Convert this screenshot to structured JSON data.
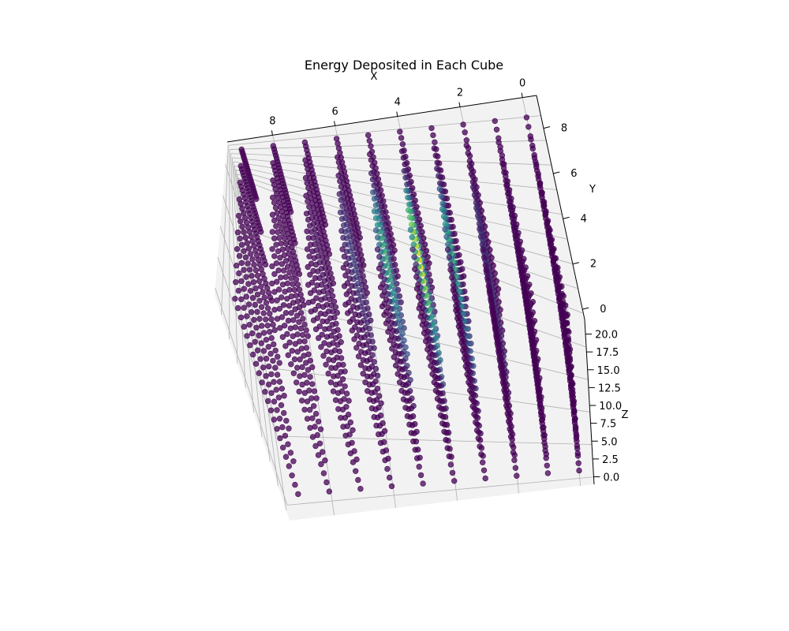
{
  "chart_data": {
    "type": "scatter3d",
    "title": "Energy Deposited in Each Cube",
    "xlabel": "X",
    "ylabel": "Y",
    "zlabel": "Z",
    "xlim": [
      -0.45,
      9.45
    ],
    "ylim": [
      -0.45,
      9.45
    ],
    "zlim": [
      -1.05,
      22.05
    ],
    "x_ticks": [
      0,
      2,
      4,
      6,
      8
    ],
    "x_tick_labels": [
      "0",
      "2",
      "4",
      "6",
      "8"
    ],
    "y_ticks": [
      0,
      2,
      4,
      6,
      8
    ],
    "y_tick_labels": [
      "0",
      "2",
      "4",
      "6",
      "8"
    ],
    "z_ticks": [
      0,
      2.5,
      5,
      7.5,
      10,
      12.5,
      15,
      17.5,
      20
    ],
    "z_tick_labels": [
      "0.0",
      "2.5",
      "5.0",
      "7.5",
      "10.0",
      "12.5",
      "15.0",
      "17.5",
      "20.0"
    ],
    "grid": true,
    "colormap": "viridis",
    "colormap_stops": [
      "#440154",
      "#3b528b",
      "#21918c",
      "#5ec962",
      "#fde725"
    ],
    "point_alpha": 0.75,
    "points": {
      "x_values": [
        0,
        1,
        2,
        3,
        4,
        5,
        6,
        7,
        8,
        9
      ],
      "y_values": [
        0,
        1,
        2,
        3,
        4,
        5,
        6,
        7,
        8,
        9
      ],
      "z_values": [
        0,
        1,
        2,
        3,
        4,
        5,
        6,
        7,
        8,
        9,
        10,
        11,
        12,
        13,
        14,
        15,
        16,
        17,
        18,
        19,
        20,
        21
      ],
      "energy_peak": {
        "x": 4,
        "y": 5,
        "spread_xy": 1.1,
        "max": 1.0
      }
    }
  },
  "colors": {
    "pane": "#f2f2f2",
    "grid": "#b0b0b0",
    "axis_line": "#000000"
  }
}
